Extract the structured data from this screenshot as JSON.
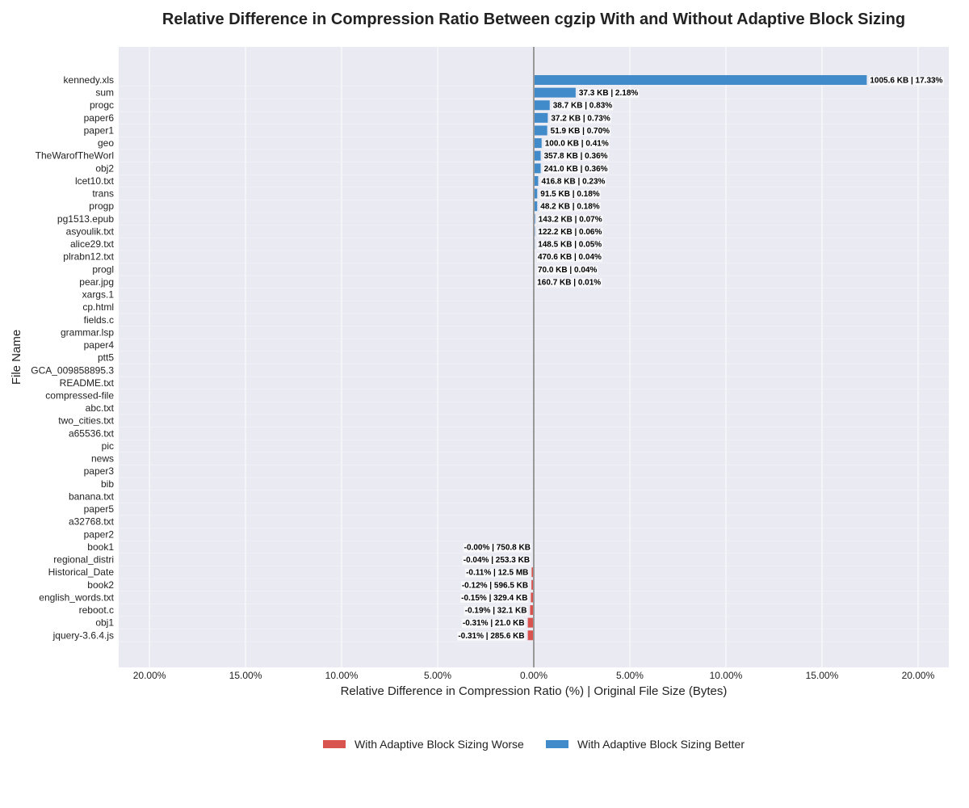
{
  "chart_data": {
    "type": "bar",
    "orientation": "horizontal",
    "title": "Relative Difference in Compression Ratio Between cgzip With and Without Adaptive Block Sizing",
    "xlabel": "Relative Difference in Compression Ratio (%) | Original File Size (Bytes)",
    "ylabel": "File Name",
    "xlim": [
      -21.6,
      21.6
    ],
    "xticks": [
      -20,
      -15,
      -10,
      -5,
      0,
      5,
      10,
      15,
      20
    ],
    "xtick_labels": [
      "20.00%",
      "15.00%",
      "10.00%",
      "5.00%",
      "0.00%",
      "5.00%",
      "10.00%",
      "15.00%",
      "20.00%"
    ],
    "grid": true,
    "legend_position": "bottom-center",
    "colors": {
      "worse": "#d9534f",
      "better": "#428bca",
      "zero_line": "#999999",
      "plot_bg": "#eaeaf2",
      "grid": "#ffffff"
    },
    "legend": [
      {
        "key": "worse",
        "label": "With Adaptive Block Sizing Worse"
      },
      {
        "key": "better",
        "label": "With Adaptive Block Sizing Better"
      }
    ],
    "bars": [
      {
        "name": "kennedy.xls",
        "value": 17.33,
        "label": "1005.6 KB | 17.33%"
      },
      {
        "name": "sum",
        "value": 2.18,
        "label": "37.3 KB | 2.18%"
      },
      {
        "name": "progc",
        "value": 0.83,
        "label": "38.7 KB | 0.83%"
      },
      {
        "name": "paper6",
        "value": 0.73,
        "label": "37.2 KB | 0.73%"
      },
      {
        "name": "paper1",
        "value": 0.7,
        "label": "51.9 KB | 0.70%"
      },
      {
        "name": "geo",
        "value": 0.41,
        "label": "100.0 KB | 0.41%"
      },
      {
        "name": "TheWarofTheWorl",
        "value": 0.36,
        "label": "357.8 KB | 0.36%"
      },
      {
        "name": "obj2",
        "value": 0.36,
        "label": "241.0 KB | 0.36%"
      },
      {
        "name": "lcet10.txt",
        "value": 0.23,
        "label": "416.8 KB | 0.23%"
      },
      {
        "name": "trans",
        "value": 0.18,
        "label": "91.5 KB | 0.18%"
      },
      {
        "name": "progp",
        "value": 0.18,
        "label": "48.2 KB | 0.18%"
      },
      {
        "name": "pg1513.epub",
        "value": 0.07,
        "label": "143.2 KB | 0.07%"
      },
      {
        "name": "asyoulik.txt",
        "value": 0.06,
        "label": "122.2 KB | 0.06%"
      },
      {
        "name": "alice29.txt",
        "value": 0.05,
        "label": "148.5 KB | 0.05%"
      },
      {
        "name": "plrabn12.txt",
        "value": 0.04,
        "label": "470.6 KB | 0.04%"
      },
      {
        "name": "progl",
        "value": 0.04,
        "label": "70.0 KB | 0.04%"
      },
      {
        "name": "pear.jpg",
        "value": 0.01,
        "label": "160.7 KB | 0.01%"
      },
      {
        "name": "xargs.1",
        "value": 0,
        "label": ""
      },
      {
        "name": "cp.html",
        "value": 0,
        "label": ""
      },
      {
        "name": "fields.c",
        "value": 0,
        "label": ""
      },
      {
        "name": "grammar.lsp",
        "value": 0,
        "label": ""
      },
      {
        "name": "paper4",
        "value": 0,
        "label": ""
      },
      {
        "name": "ptt5",
        "value": 0,
        "label": ""
      },
      {
        "name": "GCA_009858895.3",
        "value": 0,
        "label": ""
      },
      {
        "name": "README.txt",
        "value": 0,
        "label": ""
      },
      {
        "name": "compressed-file",
        "value": 0,
        "label": ""
      },
      {
        "name": "abc.txt",
        "value": 0,
        "label": ""
      },
      {
        "name": "two_cities.txt",
        "value": 0,
        "label": ""
      },
      {
        "name": "a65536.txt",
        "value": 0,
        "label": ""
      },
      {
        "name": "pic",
        "value": 0,
        "label": ""
      },
      {
        "name": "news",
        "value": 0,
        "label": ""
      },
      {
        "name": "paper3",
        "value": 0,
        "label": ""
      },
      {
        "name": "bib",
        "value": 0,
        "label": ""
      },
      {
        "name": "banana.txt",
        "value": 0,
        "label": ""
      },
      {
        "name": "paper5",
        "value": 0,
        "label": ""
      },
      {
        "name": "a32768.txt",
        "value": 0,
        "label": ""
      },
      {
        "name": "paper2",
        "value": 0,
        "label": ""
      },
      {
        "name": "book1",
        "value": -0.001,
        "label": "-0.00% | 750.8 KB"
      },
      {
        "name": "regional_distri",
        "value": -0.04,
        "label": "-0.04% | 253.3 KB"
      },
      {
        "name": "Historical_Date",
        "value": -0.11,
        "label": "-0.11% | 12.5 MB"
      },
      {
        "name": "book2",
        "value": -0.12,
        "label": "-0.12% | 596.5 KB"
      },
      {
        "name": "english_words.txt",
        "value": -0.15,
        "label": "-0.15% | 329.4 KB"
      },
      {
        "name": "reboot.c",
        "value": -0.19,
        "label": "-0.19% | 32.1 KB"
      },
      {
        "name": "obj1",
        "value": -0.31,
        "label": "-0.31% | 21.0 KB"
      },
      {
        "name": "jquery-3.6.4.js",
        "value": -0.31,
        "label": "-0.31% | 285.6 KB"
      }
    ]
  }
}
